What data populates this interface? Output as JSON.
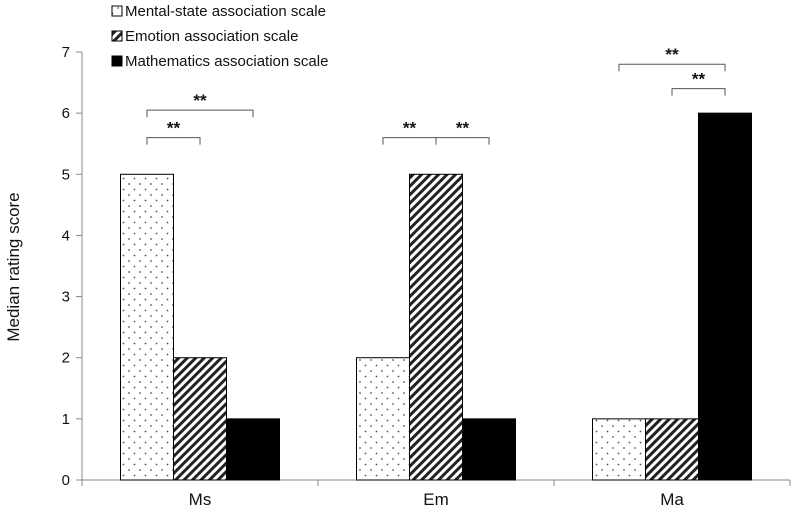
{
  "chart_data": {
    "type": "bar",
    "categories": [
      "Ms",
      "Em",
      "Ma"
    ],
    "series": [
      {
        "name": "Mental-state association scale",
        "values": [
          5,
          2,
          1
        ],
        "pattern": "dots"
      },
      {
        "name": "Emotion association scale",
        "values": [
          2,
          5,
          1
        ],
        "pattern": "hatch"
      },
      {
        "name": "Mathematics association scale",
        "values": [
          1,
          1,
          6
        ],
        "pattern": "solid"
      }
    ],
    "ylabel": "Median rating score",
    "xlabel": "",
    "title": "",
    "ylim": [
      0,
      7
    ],
    "yticks": [
      0,
      1,
      2,
      3,
      4,
      5,
      6,
      7
    ],
    "grid": false,
    "legend_position": "top-left",
    "significance": [
      {
        "category": 0,
        "from_series": 0,
        "to_series": 1,
        "level": 5.6,
        "label": "**"
      },
      {
        "category": 0,
        "from_series": 0,
        "to_series": 2,
        "level": 6.05,
        "label": "**"
      },
      {
        "category": 1,
        "from_series": 0,
        "to_series": 1,
        "level": 5.6,
        "label": "**"
      },
      {
        "category": 1,
        "from_series": 1,
        "to_series": 2,
        "level": 5.6,
        "label": "**"
      },
      {
        "category": 2,
        "from_series": 1,
        "to_series": 2,
        "level": 6.4,
        "label": "**"
      },
      {
        "category": 2,
        "from_series": 0,
        "to_series": 2,
        "level": 6.8,
        "label": "**"
      }
    ],
    "colors": {
      "solid": "#000000",
      "outline": "#000000",
      "axis": "#888888",
      "dots": "#555555",
      "hatch": "#222222"
    }
  }
}
